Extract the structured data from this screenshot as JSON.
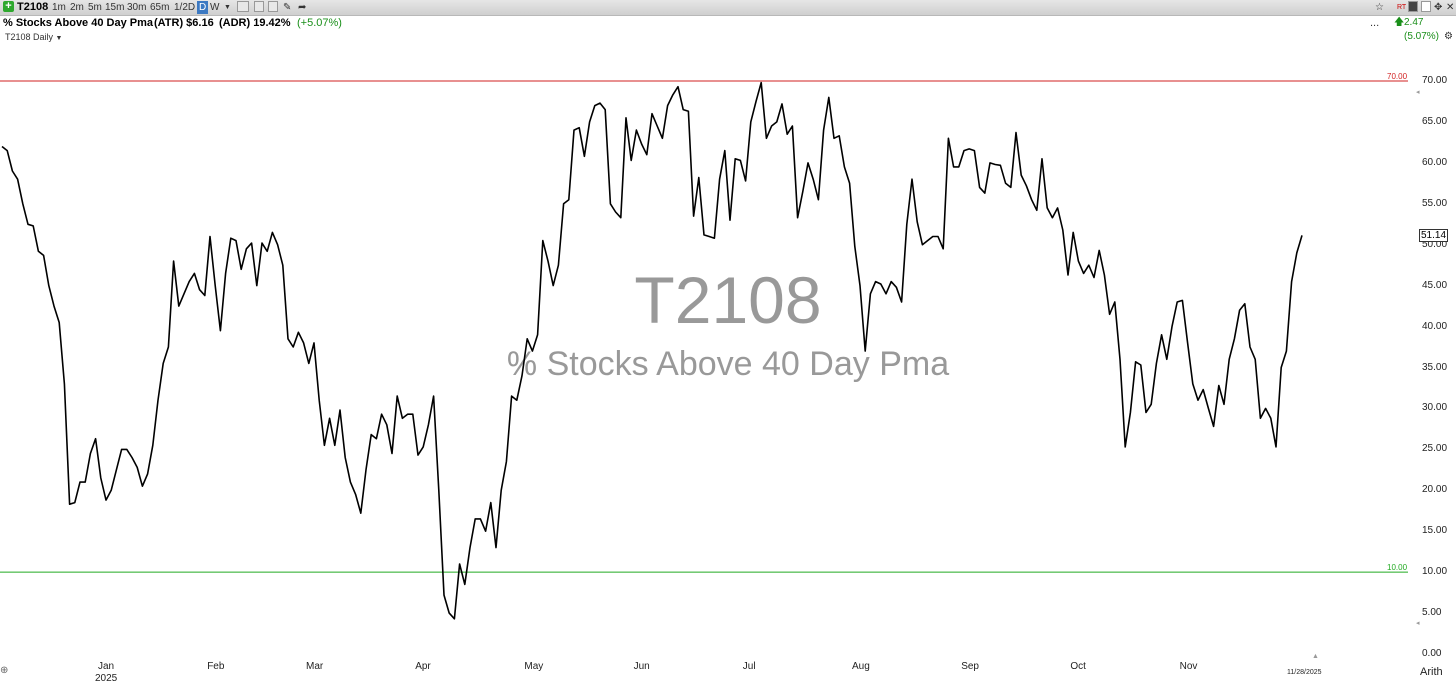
{
  "toolbar": {
    "symbol": "T2108",
    "timeframes": [
      "1m",
      "2m",
      "5m",
      "15m",
      "30m",
      "65m",
      "1/2D"
    ],
    "selected_timeframe": "D",
    "weekly": "W",
    "icons": [
      "plus-icon",
      "text-tool-icon",
      "indicator-icon",
      "layout-icon",
      "pencil-icon",
      "share-icon"
    ],
    "right_icons": [
      "star-icon",
      "rt-badge-icon",
      "sx-icon",
      "restore-icon",
      "move-icon",
      "close-icon"
    ]
  },
  "info": {
    "name": "% Stocks Above 40 Day Pma",
    "atr_label": "(ATR) $6.16",
    "adr_label": "(ADR) 19.42%",
    "change_label": "(+5.07%)",
    "right_ellipsis": "...",
    "right_change": "2.47 (5.07%)"
  },
  "timeframe_label": "T2108 Daily",
  "watermark": {
    "symbol": "T2108",
    "name": "% Stocks Above 40 Day Pma"
  },
  "axis": {
    "scale_mode": "Arith",
    "last_date": "11/28/2025",
    "last_value": "51.14"
  },
  "colors": {
    "upper_line": "#d22222",
    "lower_line": "#22aa22",
    "price_line": "#000000",
    "change_green": "#1a8f1a"
  },
  "chart_data": {
    "type": "line",
    "ylim": [
      0,
      70
    ],
    "upper_level": {
      "label": "70.00",
      "value": 70
    },
    "lower_level": {
      "label": "10.00",
      "value": 10
    },
    "y_ticks": [
      "70.00",
      "65.00",
      "60.00",
      "55.00",
      "50.00",
      "45.00",
      "40.00",
      "35.00",
      "30.00",
      "25.00",
      "20.00",
      "15.00",
      "10.00",
      "5.00",
      "0.00"
    ],
    "x_ticks": [
      {
        "label": "Jan",
        "index": 20,
        "sub": "2025"
      },
      {
        "label": "Feb",
        "index": 41
      },
      {
        "label": "Mar",
        "index": 60
      },
      {
        "label": "Apr",
        "index": 81
      },
      {
        "label": "May",
        "index": 102
      },
      {
        "label": "Jun",
        "index": 123
      },
      {
        "label": "Jul",
        "index": 144
      },
      {
        "label": "Aug",
        "index": 165
      },
      {
        "label": "Sep",
        "index": 186
      },
      {
        "label": "Oct",
        "index": 207
      },
      {
        "label": "Nov",
        "index": 228
      }
    ],
    "values": [
      62,
      61.5,
      59,
      58,
      55,
      52.5,
      52.3,
      49.2,
      48.7,
      45,
      42.5,
      40.5,
      33,
      18.3,
      18.5,
      21,
      21,
      24.5,
      26.3,
      21.5,
      18.8,
      20,
      22.5,
      25,
      25,
      24,
      22.8,
      20.5,
      22,
      25.5,
      31,
      35.5,
      37.5,
      48,
      42.5,
      44,
      45.5,
      46.5,
      44.5,
      43.8,
      51,
      45,
      39.5,
      46.5,
      50.8,
      50.5,
      47,
      49.5,
      50.2,
      45,
      50.2,
      49.2,
      51.5,
      50,
      47.5,
      38.5,
      37.5,
      39.3,
      38,
      35.5,
      38,
      31,
      25.5,
      28.8,
      25.5,
      29.8,
      24,
      21,
      19.5,
      17.2,
      22.5,
      26.8,
      26.3,
      29.3,
      28,
      24.5,
      31.5,
      28.8,
      29.3,
      29.3,
      24.3,
      25.3,
      28,
      31.5,
      20,
      7.2,
      5,
      4.3,
      11,
      8.5,
      13,
      16.5,
      16.5,
      15,
      18.5,
      13,
      20,
      23.5,
      31.5,
      31,
      34,
      38.5,
      37,
      39,
      50.5,
      48,
      45,
      47.5,
      55,
      55.5,
      64,
      64.3,
      60.8,
      65,
      67,
      67.3,
      66.5,
      55,
      54,
      53.3,
      65.5,
      60.3,
      64,
      62.3,
      61,
      66,
      64.5,
      63,
      67,
      68.3,
      69.3,
      66.5,
      66.3,
      53.5,
      58.2,
      51.2,
      51,
      50.8,
      58,
      61.5,
      53,
      60.5,
      60.3,
      57.8,
      65,
      67.5,
      69.8,
      63,
      64.5,
      65,
      67.2,
      63.5,
      64.5,
      53.3,
      56.5,
      60,
      58,
      55.5,
      64,
      68,
      63,
      63.3,
      59.5,
      57.5,
      49.8,
      45,
      37,
      44,
      45.5,
      45.2,
      44,
      45.5,
      44.8,
      43,
      52.5,
      58,
      52.8,
      50,
      50.5,
      51,
      51,
      49.5,
      63,
      59.5,
      59.5,
      61.5,
      61.7,
      61.5,
      57,
      56.3,
      60,
      59.8,
      59.7,
      57.5,
      57,
      63.7,
      58.5,
      57.2,
      55.5,
      54.2,
      60.5,
      54.5,
      53.3,
      54.5,
      51.8,
      46.3,
      51.5,
      48,
      46.5,
      47.5,
      46,
      49.3,
      46.3,
      41.5,
      43,
      36,
      25.3,
      29.5,
      35.7,
      35.3,
      29.5,
      30.5,
      35.5,
      39,
      36,
      40,
      43,
      43.2,
      38,
      33,
      31,
      32.3,
      30,
      27.8,
      32.8,
      30.5,
      36,
      38.5,
      42,
      42.8,
      37.5,
      36,
      28.8,
      30,
      28.8,
      25.3,
      35,
      37,
      45.5,
      49,
      51.14
    ]
  }
}
